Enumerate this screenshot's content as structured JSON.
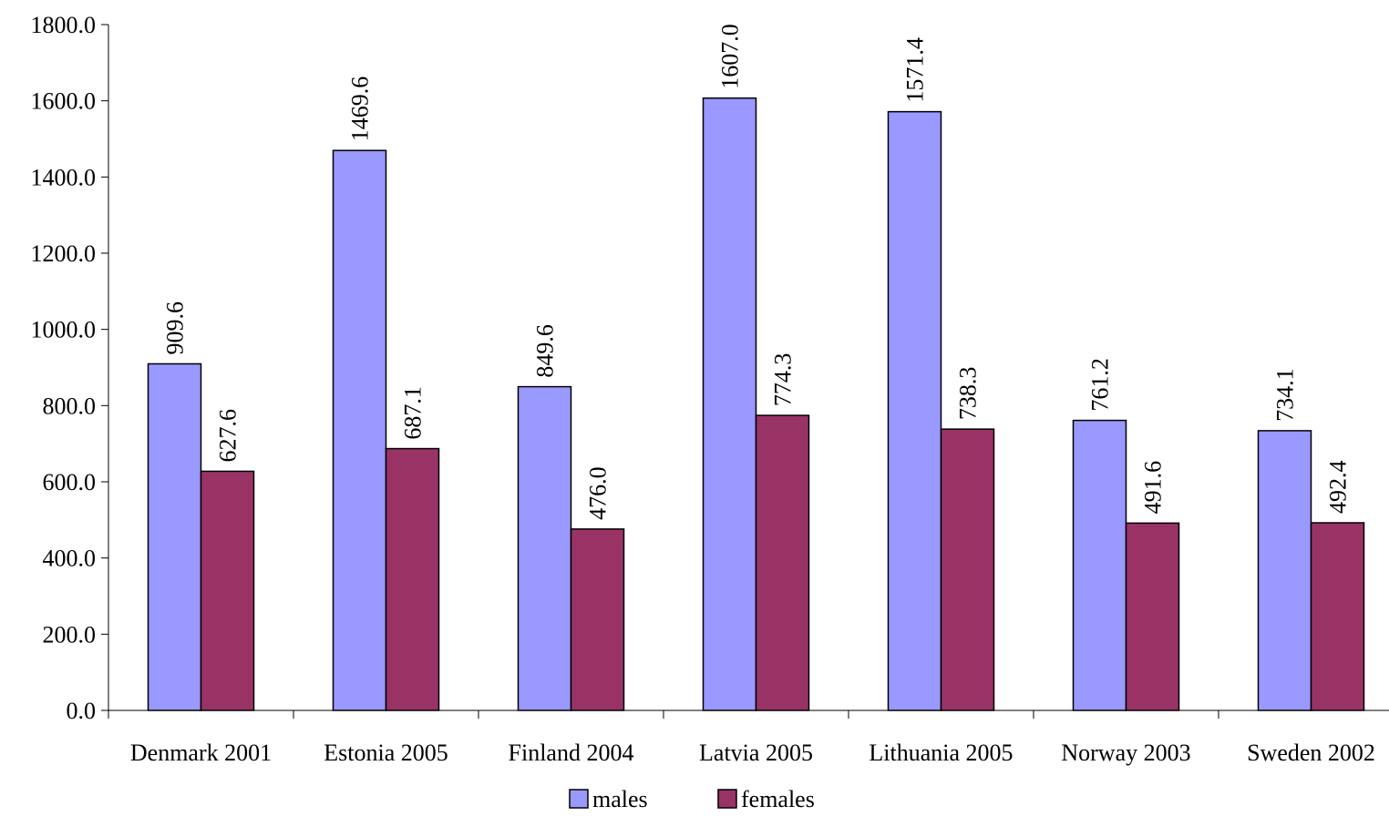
{
  "chart_data": {
    "type": "bar",
    "categories": [
      "Denmark 2001",
      "Estonia 2005",
      "Finland 2004",
      "Latvia 2005",
      "Lithuania 2005",
      "Norway 2003",
      "Sweden 2002"
    ],
    "series": [
      {
        "name": "males",
        "color": "#9999ff",
        "values": [
          909.6,
          1469.6,
          849.6,
          1607.0,
          1571.4,
          761.2,
          734.1
        ],
        "labels": [
          "909.6",
          "1469.6",
          "849.6",
          "1607.0",
          "1571.4",
          "761.2",
          "734.1"
        ]
      },
      {
        "name": "females",
        "color": "#993366",
        "values": [
          627.6,
          687.1,
          476.0,
          774.3,
          738.3,
          491.6,
          492.4
        ],
        "labels": [
          "627.6",
          "687.1",
          "476.0",
          "774.3",
          "738.3",
          "491.6",
          "492.4"
        ]
      }
    ],
    "ylim": [
      0,
      1800
    ],
    "yticks": [
      "0.0",
      "200.0",
      "400.0",
      "600.0",
      "800.0",
      "1000.0",
      "1200.0",
      "1400.0",
      "1600.0",
      "1800.0"
    ],
    "ytick_values": [
      0,
      200,
      400,
      600,
      800,
      1000,
      1200,
      1400,
      1600,
      1800
    ],
    "legend_position": "bottom-center",
    "grid": false
  }
}
